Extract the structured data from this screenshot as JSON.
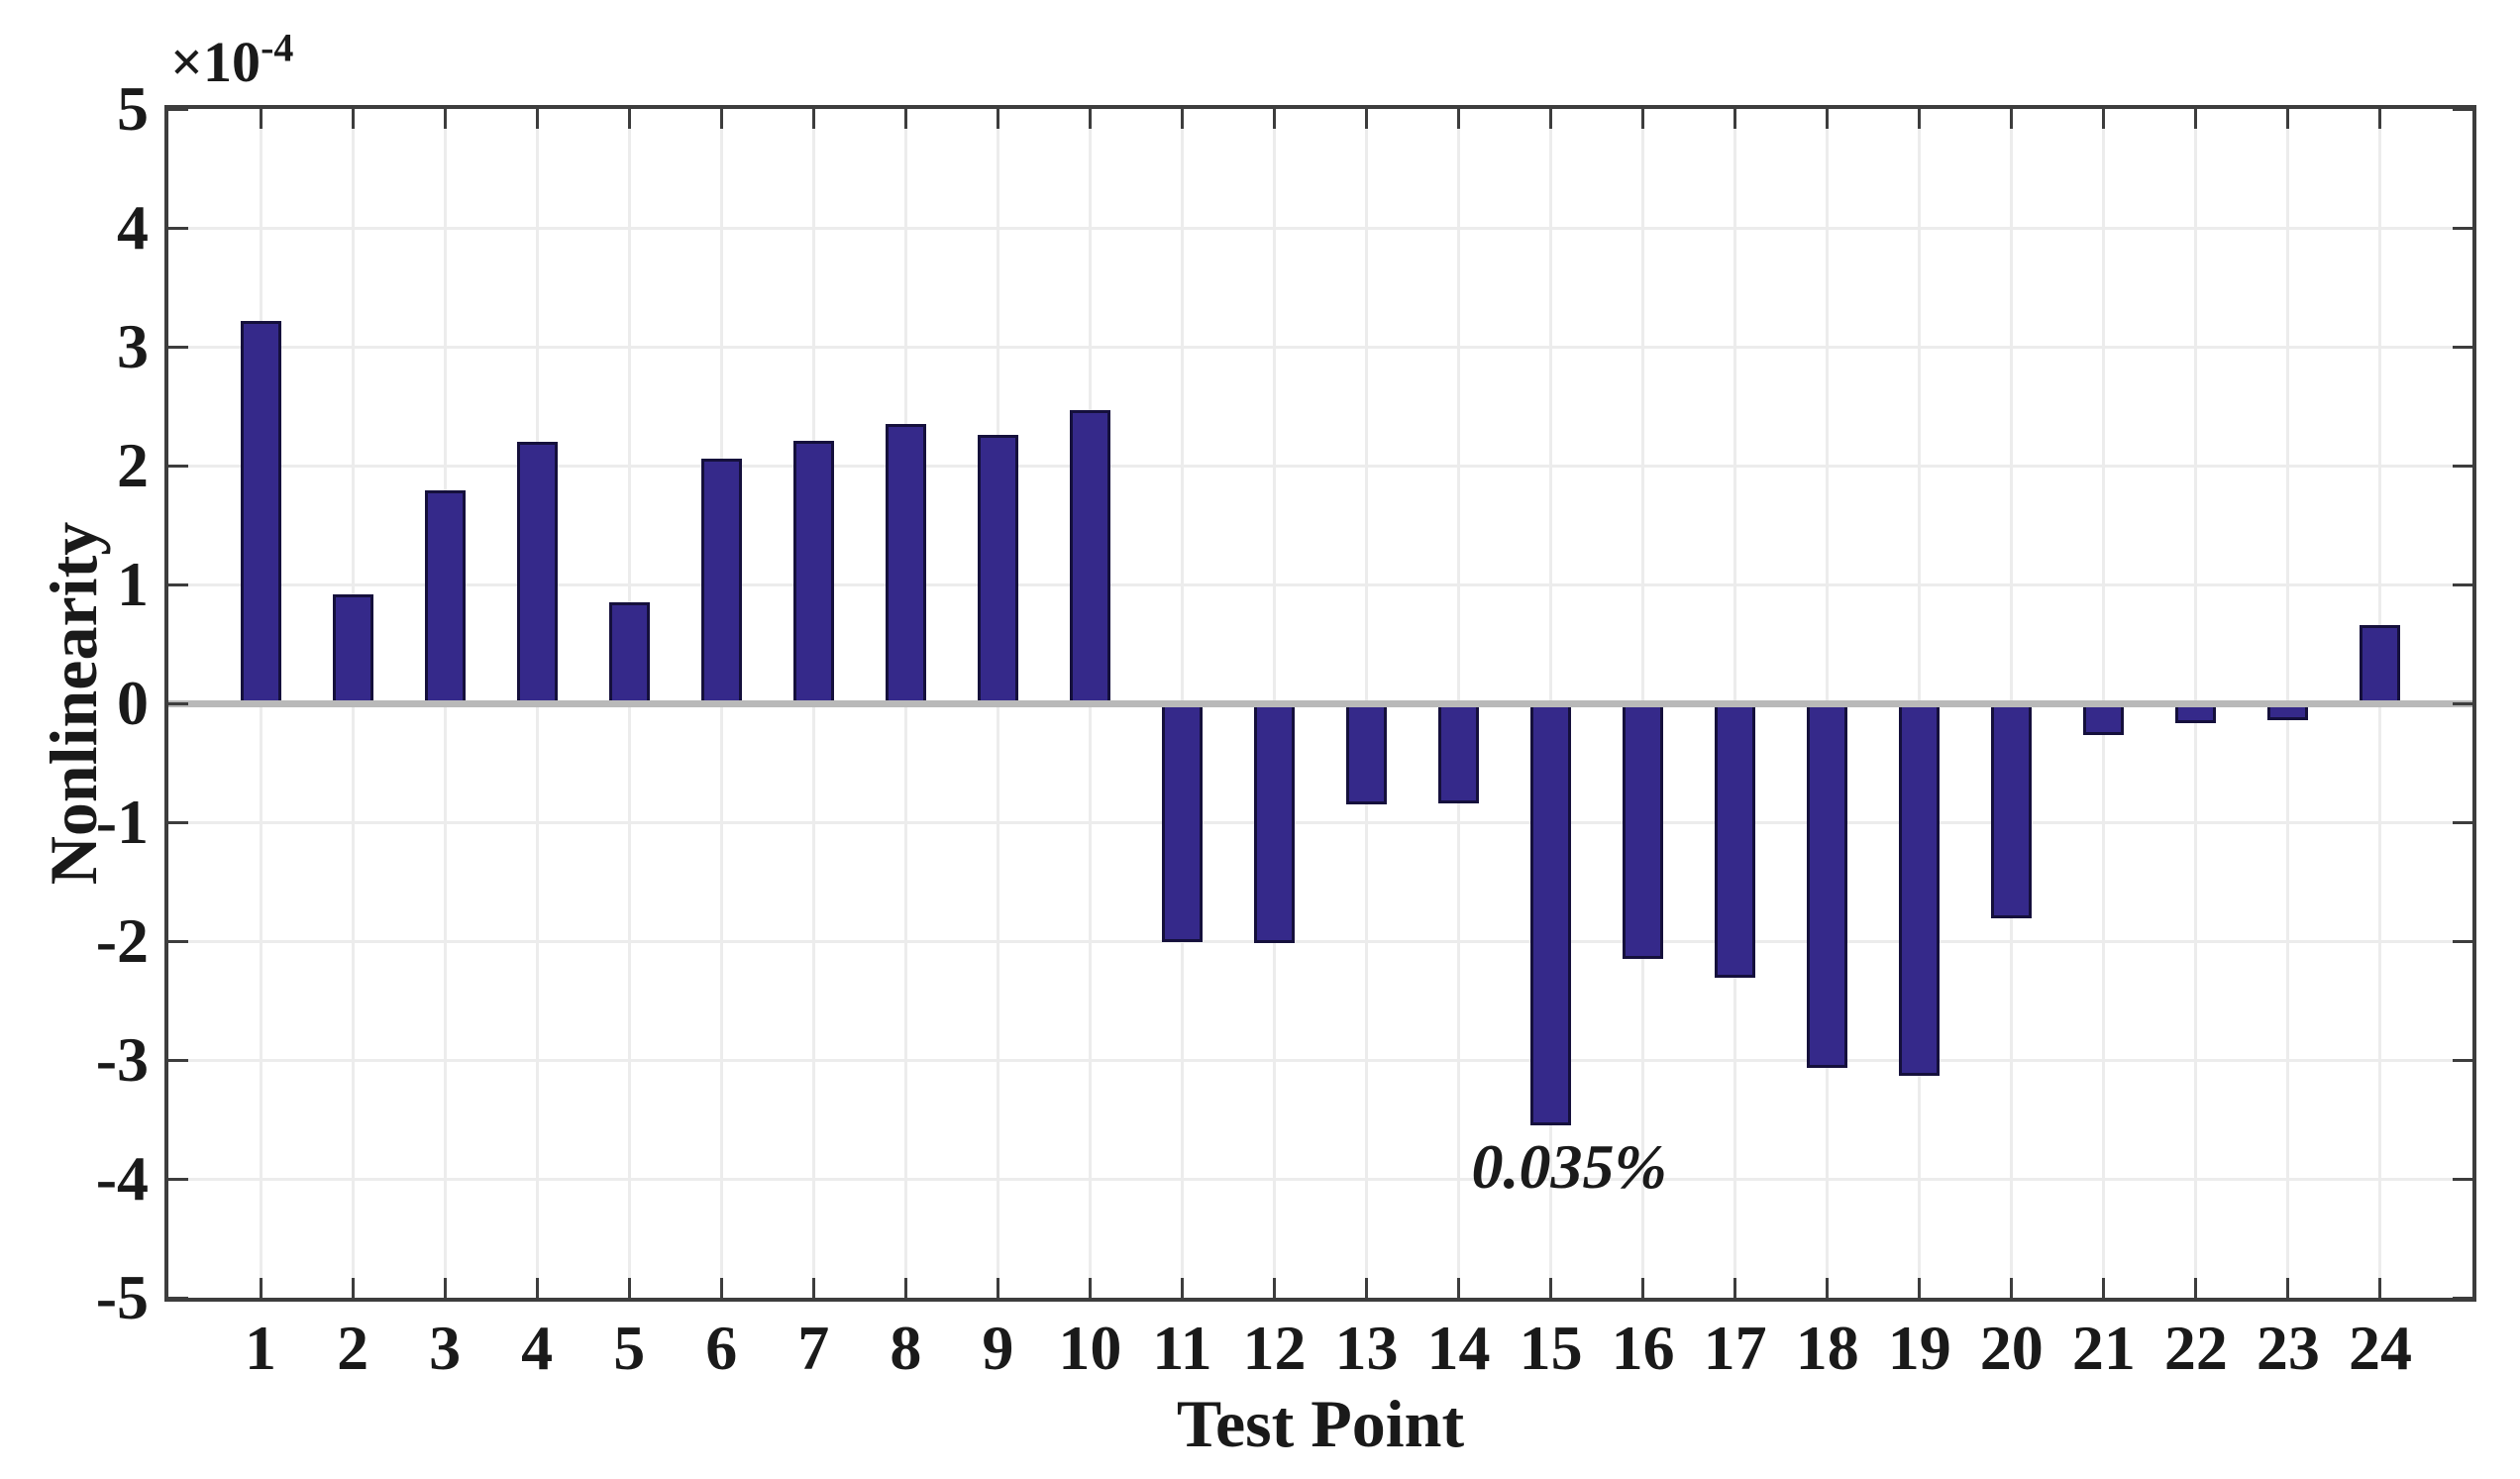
{
  "chart_data": {
    "type": "bar",
    "title": "",
    "xlabel": "Test Point",
    "ylabel": "Nonlinearity",
    "y_scale_label": {
      "base": "×10",
      "exponent": "-4"
    },
    "categories": [
      1,
      2,
      3,
      4,
      5,
      6,
      7,
      8,
      9,
      10,
      11,
      12,
      13,
      14,
      15,
      16,
      17,
      18,
      19,
      20,
      21,
      22,
      23,
      24
    ],
    "values": [
      3.22,
      0.92,
      1.79,
      2.2,
      0.85,
      2.06,
      2.21,
      2.35,
      2.26,
      2.47,
      -2.01,
      -2.02,
      -0.85,
      -0.84,
      -3.55,
      -2.15,
      -2.31,
      -3.07,
      -3.13,
      -1.81,
      -0.27,
      -0.17,
      -0.14,
      0.66
    ],
    "xlim": [
      0,
      25
    ],
    "ylim": [
      -5,
      5
    ],
    "yticks": [
      5,
      4,
      3,
      2,
      1,
      0,
      -1,
      -2,
      -3,
      -4,
      -5
    ],
    "grid": true,
    "legend": null,
    "box": true,
    "bar_width_ratio": 0.44,
    "annotation": {
      "text": "0.035%",
      "x": 15.2,
      "y": -3.9
    },
    "colors": {
      "bar_fill": "#35298a",
      "bar_edge": "#15103c",
      "grid": "#ececec",
      "zero_line": "#b9b9b9",
      "axis": "#3d3d3d",
      "text": "#1a1a1a",
      "background": "#ffffff"
    }
  }
}
